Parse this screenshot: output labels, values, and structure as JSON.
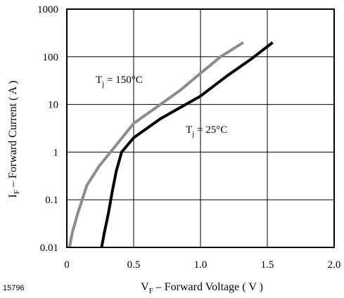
{
  "chart_data": {
    "type": "line",
    "figure_id": "15796",
    "x_axis": {
      "label_main": "V",
      "label_sub": "F",
      "label_rest": " – Forward Voltage ( V )",
      "lim": [
        0,
        2.0
      ],
      "ticks": [
        0,
        0.5,
        1.0,
        1.5,
        2.0
      ],
      "tick_labels": [
        "0",
        "0.5",
        "1.0",
        "1.5",
        "2.0"
      ],
      "scale": "linear"
    },
    "y_axis": {
      "label_main": "I",
      "label_sub": "F",
      "label_rest": " – Forward Current ( A )",
      "lim": [
        0.01,
        1000
      ],
      "ticks": [
        0.01,
        0.1,
        1,
        10,
        100,
        1000
      ],
      "tick_labels": [
        "0.01",
        "0.1",
        "1",
        "10",
        "100",
        "1000"
      ],
      "scale": "log"
    },
    "grid": "vertical and horizontal at major ticks",
    "series": [
      {
        "name_main": "T",
        "name_sub": "j",
        "name_rest": " = 150°C",
        "color": "#8c8c8c",
        "x": [
          0.02,
          0.04,
          0.08,
          0.15,
          0.24,
          0.35,
          0.5,
          0.7,
          0.85,
          1.0,
          1.15,
          1.32
        ],
        "y": [
          0.01,
          0.02,
          0.05,
          0.2,
          0.5,
          1.2,
          4,
          10,
          20,
          45,
          100,
          200
        ]
      },
      {
        "name_main": "T",
        "name_sub": "j",
        "name_rest": " = 25°C",
        "color": "#000000",
        "x": [
          0.26,
          0.28,
          0.31,
          0.34,
          0.37,
          0.41,
          0.5,
          0.7,
          1.0,
          1.2,
          1.38,
          1.54
        ],
        "y": [
          0.01,
          0.02,
          0.05,
          0.15,
          0.4,
          1.0,
          2.0,
          5,
          15,
          40,
          90,
          200
        ]
      }
    ]
  }
}
